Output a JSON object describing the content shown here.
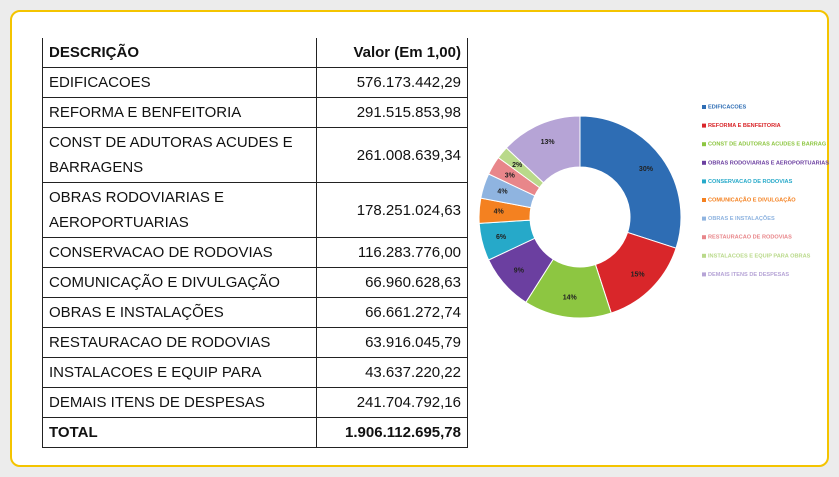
{
  "table": {
    "header": [
      "DESCRIÇÃO",
      "Valor (Em 1,00)"
    ],
    "rows": [
      [
        "EDIFICACOES",
        "576.173.442,29"
      ],
      [
        "REFORMA E BENFEITORIA",
        "291.515.853,98"
      ],
      [
        "CONST DE ADUTORAS ACUDES E BARRAGENS",
        "261.008.639,34"
      ],
      [
        "OBRAS RODOVIARIAS E AEROPORTUARIAS",
        "178.251.024,63"
      ],
      [
        "CONSERVACAO DE RODOVIAS",
        "116.283.776,00"
      ],
      [
        "COMUNICAÇÃO E DIVULGAÇÃO",
        "66.960.628,63"
      ],
      [
        "OBRAS E INSTALAÇÕES",
        "66.661.272,74"
      ],
      [
        "RESTAURACAO DE RODOVIAS",
        "63.916.045,79"
      ],
      [
        "INSTALACOES E EQUIP PARA",
        "43.637.220,22"
      ],
      [
        "DEMAIS ITENS DE DESPESAS",
        "241.704.792,16"
      ]
    ],
    "total": [
      "TOTAL",
      "1.906.112.695,78"
    ]
  },
  "chart_data": {
    "type": "donut",
    "categories": [
      "EDIFICACOES",
      "REFORMA E BENFEITORIA",
      "CONST DE ADUTORAS ACUDES E BARRAG",
      "OBRAS RODOVIARIAS E AEROPORTUARIAS",
      "CONSERVACAO DE RODOVIAS",
      "COMUNICAÇÃO E DIVULGAÇÃO",
      "OBRAS E INSTALAÇÕES",
      "RESTAURACAO DE RODOVIAS",
      "INSTALACOES E EQUIP PARA OBRAS",
      "DEMAIS ITENS DE DESPESAS"
    ],
    "values": [
      30,
      15,
      14,
      9,
      6,
      4,
      4,
      3,
      2,
      13
    ],
    "value_labels": [
      "30%",
      "15%",
      "14%",
      "9%",
      "6%",
      "4%",
      "4%",
      "3%",
      "2%",
      "13%"
    ],
    "colors": [
      "#2e6db4",
      "#d9262a",
      "#8dc641",
      "#6b3fa0",
      "#26a9c9",
      "#f48120",
      "#8fb4e0",
      "#e8868a",
      "#b9d98a",
      "#b6a4d6"
    ],
    "legend": "right"
  }
}
